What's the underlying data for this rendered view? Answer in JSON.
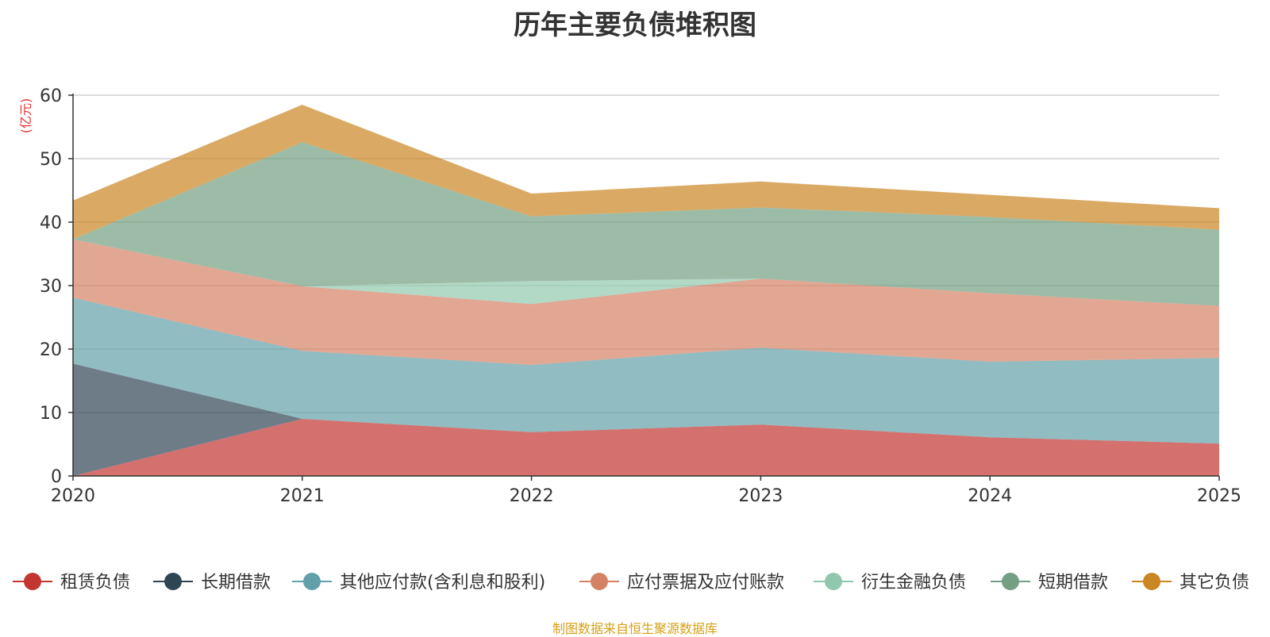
{
  "chart_data": {
    "type": "area",
    "stacked": true,
    "title": "历年主要负债堆积图",
    "ylabel": "(亿元)",
    "xlabel": "",
    "ylim": [
      0,
      60
    ],
    "yticks": [
      0,
      10,
      20,
      30,
      40,
      50,
      60
    ],
    "categories": [
      "2020",
      "2021",
      "2022",
      "2023",
      "2024",
      "2025"
    ],
    "series": [
      {
        "name": "租赁负债",
        "color": "#c23531",
        "values": [
          0,
          9.0,
          6.9,
          8.1,
          6.1,
          5.1
        ]
      },
      {
        "name": "长期借款",
        "color": "#2f4554",
        "values": [
          17.7,
          0,
          0,
          0,
          0,
          0
        ]
      },
      {
        "name": "其他应付款(含利息和股利)",
        "color": "#61a0a8",
        "values": [
          10.4,
          10.7,
          10.6,
          12.1,
          11.9,
          13.5
        ]
      },
      {
        "name": "应付票据及应付账款",
        "color": "#d48265",
        "values": [
          9.2,
          10.2,
          9.6,
          10.9,
          10.8,
          8.2
        ]
      },
      {
        "name": "衍生金融负债",
        "color": "#91c7ae",
        "values": [
          0,
          0,
          3.6,
          0,
          0,
          0
        ]
      },
      {
        "name": "短期借款",
        "color": "#749f83",
        "values": [
          0,
          22.7,
          10.2,
          11.2,
          12.0,
          12.0
        ]
      },
      {
        "name": "其它负债",
        "color": "#ca8622",
        "values": [
          6.1,
          5.9,
          3.6,
          4.1,
          3.5,
          3.4
        ]
      }
    ],
    "legend_position": "bottom",
    "grid": true
  },
  "source_note": "制图数据来自恒生聚源数据库"
}
